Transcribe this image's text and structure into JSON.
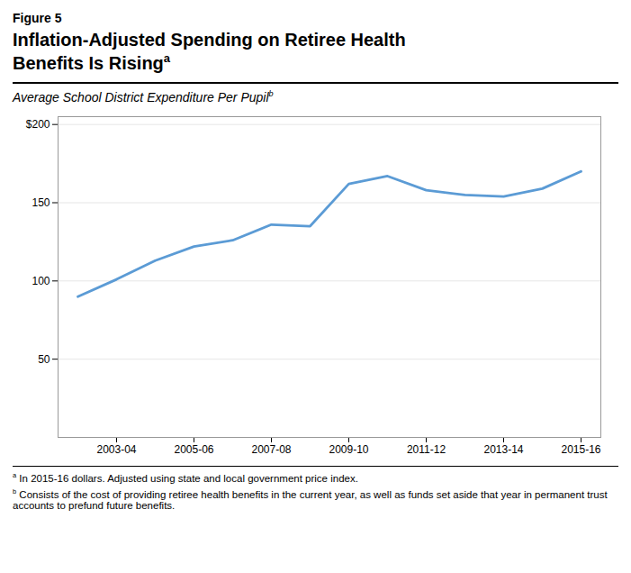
{
  "chart_data": {
    "type": "line",
    "figure_label": "Figure 5",
    "title": "Inflation-Adjusted Spending on Retiree Health Benefits Is Rising",
    "title_marker": "a",
    "subtitle": "Average School District Expenditure Per Pupil",
    "subtitle_marker": "b",
    "categories": [
      null,
      "2003-04",
      null,
      "2005-06",
      null,
      "2007-08",
      null,
      "2009-10",
      null,
      "2011-12",
      null,
      "2013-14",
      null,
      "2015-16"
    ],
    "values": [
      90,
      101,
      113,
      122,
      126,
      136,
      135,
      162,
      167,
      158,
      155,
      154,
      159,
      170
    ],
    "color": "#5b9bd5",
    "ylim": [
      0,
      205
    ],
    "yticks": [
      50,
      100,
      150,
      {
        "value": 200,
        "label": "$200"
      }
    ],
    "grid": true,
    "footnotes": [
      {
        "marker": "a",
        "text": "In 2015-16 dollars. Adjusted using state and local government price index."
      },
      {
        "marker": "b",
        "text": "Consists of the cost of providing retiree health benefits in the current year, as well as funds set aside that year in permanent trust accounts to prefund future benefits."
      }
    ]
  }
}
